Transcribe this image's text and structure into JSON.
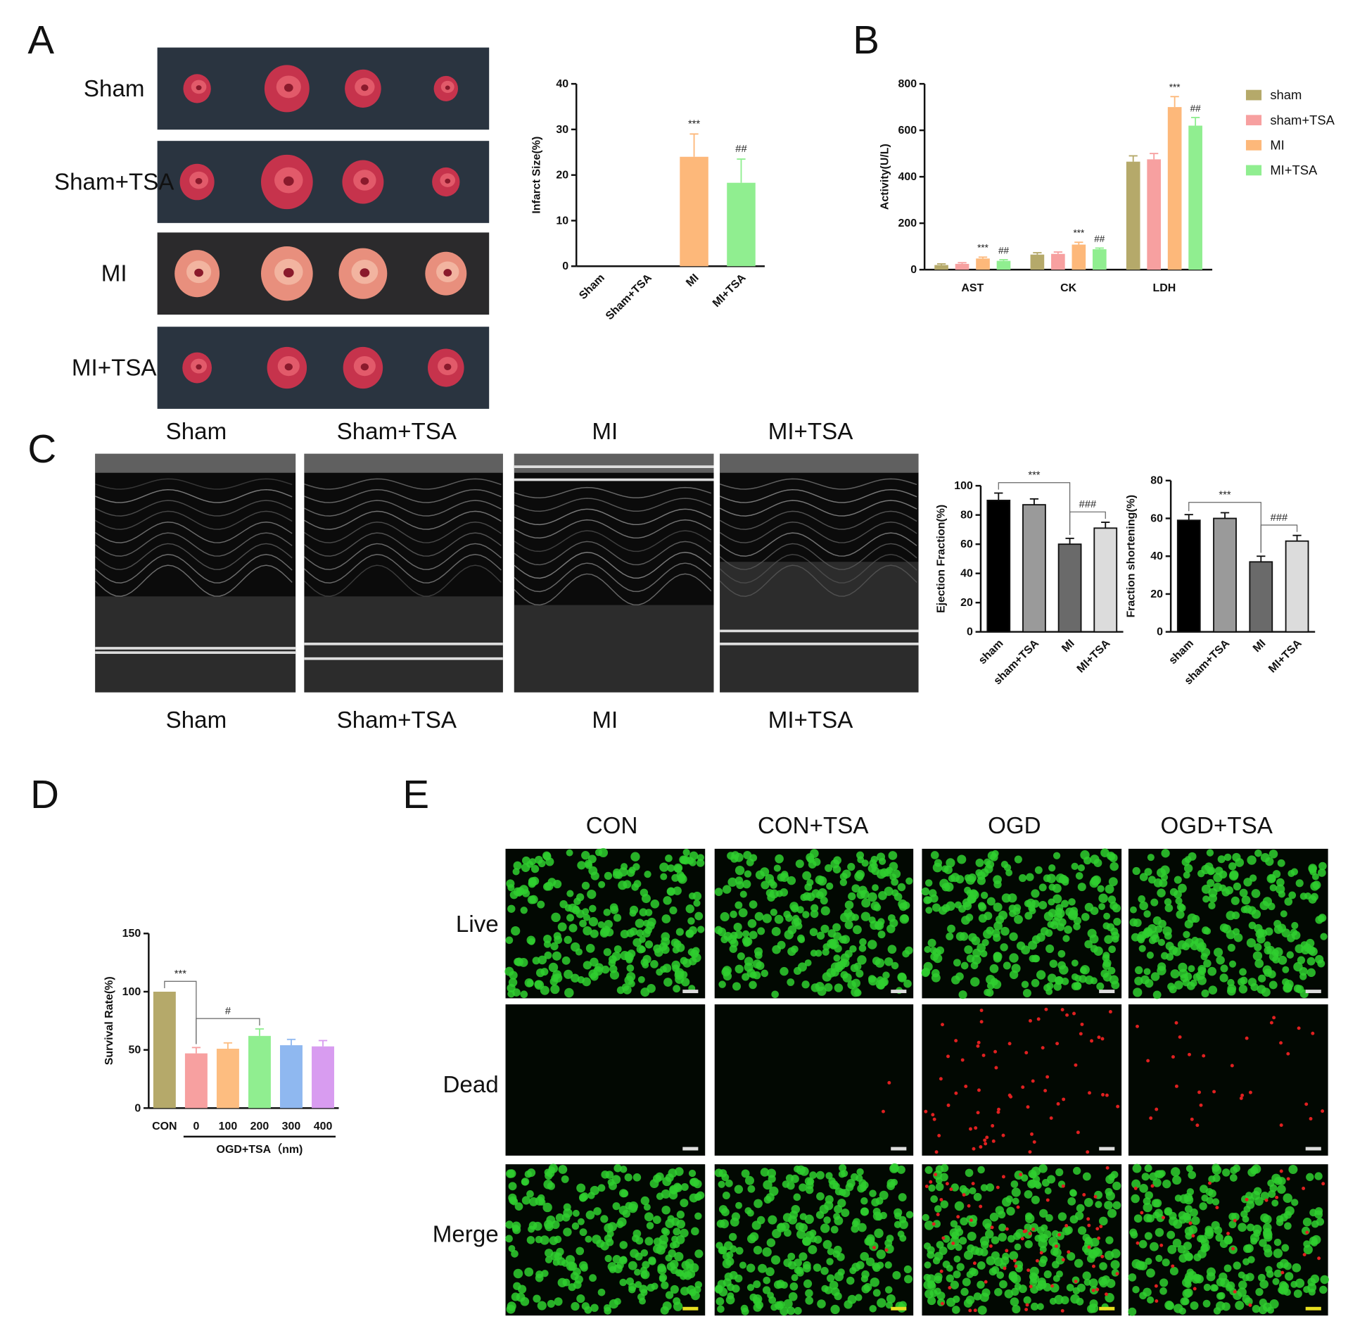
{
  "panel_labels": [
    "A",
    "B",
    "C",
    "D",
    "E"
  ],
  "heart_rows": [
    "Sham",
    "Sham+TSA",
    "MI",
    "MI+TSA"
  ],
  "echo_top": [
    "Sham",
    "Sham+TSA",
    "MI",
    "MI+TSA"
  ],
  "echo_bottom": [
    "Sham",
    "Sham+TSA",
    "MI",
    "MI+TSA"
  ],
  "cell_columns": [
    "CON",
    "CON+TSA",
    "OGD",
    "OGD+TSA"
  ],
  "cell_rows": [
    "Live",
    "Dead",
    "Merge"
  ],
  "chart_data": [
    {
      "type": "bar",
      "ylabel": "Infarct Size(%)",
      "categories": [
        "Sham",
        "Sham+TSA",
        "MI",
        "MI+TSA"
      ],
      "values": [
        0,
        0,
        24,
        18.3
      ],
      "errors": [
        0,
        0,
        5,
        5.2
      ],
      "colors": [
        "#fdb87a",
        "#90ee90",
        "#fdb87a",
        "#90ee90"
      ],
      "annotations": [
        null,
        null,
        "***",
        "##"
      ],
      "ylim": [
        0,
        40
      ],
      "yticks": [
        0,
        10,
        20,
        30,
        40
      ]
    },
    {
      "type": "grouped-bar",
      "ylabel": "Activity(U/L)",
      "categories": [
        "AST",
        "CK",
        "LDH"
      ],
      "series": [
        {
          "name": "sham",
          "color": "#b5a96a",
          "values": [
            20,
            65,
            465
          ],
          "errors": [
            5,
            8,
            25
          ]
        },
        {
          "name": "sham+TSA",
          "color": "#f7a0a0",
          "values": [
            25,
            68,
            475
          ],
          "errors": [
            5,
            8,
            25
          ]
        },
        {
          "name": "MI",
          "color": "#fdb87a",
          "values": [
            48,
            108,
            700
          ],
          "errors": [
            6,
            10,
            45
          ],
          "annotations": [
            "***",
            "***",
            "***"
          ]
        },
        {
          "name": "MI+TSA",
          "color": "#90ee90",
          "values": [
            38,
            88,
            620
          ],
          "errors": [
            5,
            5,
            35
          ],
          "annotations": [
            "##",
            "##",
            "##"
          ]
        }
      ],
      "legend": "right",
      "ylim": [
        0,
        800
      ],
      "yticks": [
        0,
        200,
        400,
        600,
        800
      ]
    },
    {
      "type": "bar",
      "ylabel": "Ejection Fraction(%)",
      "categories": [
        "sham",
        "sham+TSA",
        "MI",
        "MI+TSA"
      ],
      "values": [
        90,
        87,
        60,
        71
      ],
      "errors": [
        5,
        4,
        4,
        4
      ],
      "colors": [
        "#000000",
        "#9a9a9a",
        "#6a6a6a",
        "#dcdcdc"
      ],
      "brackets": [
        {
          "text": "***",
          "from": "sham",
          "to": "MI"
        },
        {
          "text": "###",
          "from": "MI",
          "to": "MI+TSA"
        }
      ],
      "ylim": [
        0,
        100
      ],
      "yticks": [
        0,
        20,
        40,
        60,
        80,
        100
      ]
    },
    {
      "type": "bar",
      "ylabel": "Fraction shortening(%)",
      "categories": [
        "sham",
        "sham+TSA",
        "MI",
        "MI+TSA"
      ],
      "values": [
        59,
        60,
        37,
        48
      ],
      "errors": [
        3,
        3,
        3,
        3
      ],
      "colors": [
        "#000000",
        "#9a9a9a",
        "#6a6a6a",
        "#dcdcdc"
      ],
      "brackets": [
        {
          "text": "***",
          "from": "sham",
          "to": "MI"
        },
        {
          "text": "###",
          "from": "MI",
          "to": "MI+TSA"
        }
      ],
      "ylim": [
        0,
        80
      ],
      "yticks": [
        0,
        20,
        40,
        60,
        80
      ]
    },
    {
      "type": "bar",
      "ylabel": "Survival Rate(%)",
      "categories": [
        "CON",
        "0",
        "100",
        "200",
        "300",
        "400"
      ],
      "values": [
        100,
        47,
        51,
        62,
        54,
        53
      ],
      "errors": [
        0,
        5,
        5,
        6,
        5,
        5
      ],
      "colors": [
        "#b5a96a",
        "#f7a0a0",
        "#fdbd80",
        "#90ee90",
        "#8fb8f0",
        "#d89cf0"
      ],
      "brackets": [
        {
          "text": "***",
          "from": "CON",
          "to": "0"
        },
        {
          "text": "#",
          "from": "0",
          "to": "200"
        }
      ],
      "x_group": {
        "label": "OGD+TSA（nm)",
        "from": "0",
        "to": "400"
      },
      "ylim": [
        0,
        150
      ],
      "yticks": [
        0,
        50,
        100,
        150
      ]
    }
  ]
}
